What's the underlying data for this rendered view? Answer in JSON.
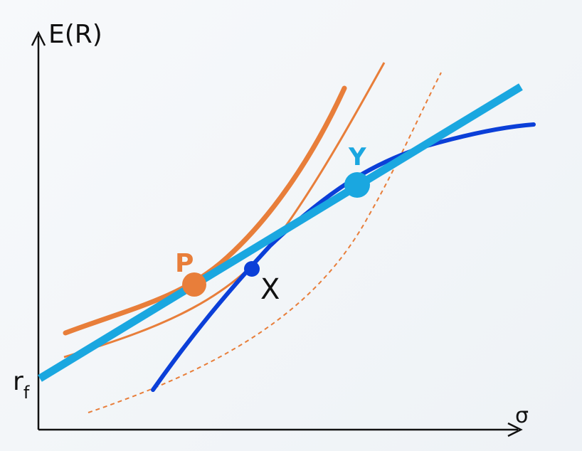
{
  "axes": {
    "y_label": "E(R)",
    "x_label": "σ",
    "rf_base": "r",
    "rf_sub": "f"
  },
  "points": {
    "P": "P",
    "X": "X",
    "Y": "Y"
  },
  "colors": {
    "axis": "#111111",
    "cml": "#1aa7e0",
    "frontier": "#0b3fd8",
    "indifference": "#e87e3a",
    "point_P": "#e87e3a",
    "point_X": "#0b3fd8",
    "point_Y": "#1aa7e0"
  }
}
